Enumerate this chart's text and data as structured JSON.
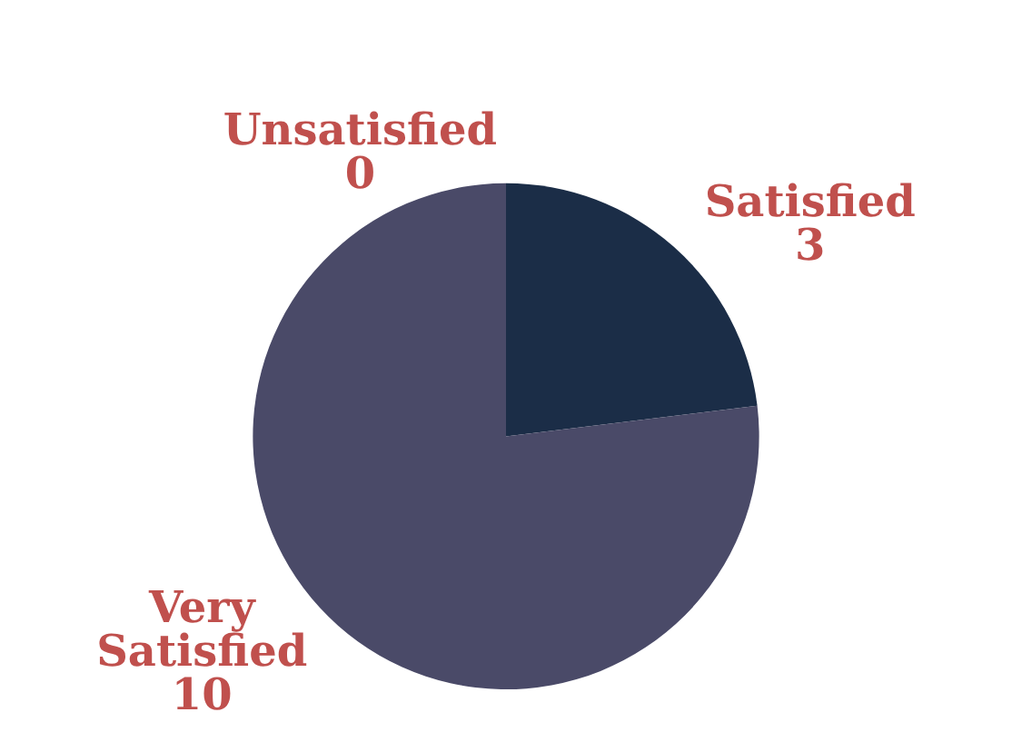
{
  "chart_data": {
    "type": "pie",
    "categories": [
      "Unsatisfied",
      "Satisfied",
      "Very Satisfied"
    ],
    "values": [
      0,
      3,
      10
    ],
    "colors": [
      "#c0504d",
      "#1b2d47",
      "#4a4a68"
    ],
    "value_labels": [
      "0",
      "3",
      "10"
    ],
    "legend": false
  }
}
